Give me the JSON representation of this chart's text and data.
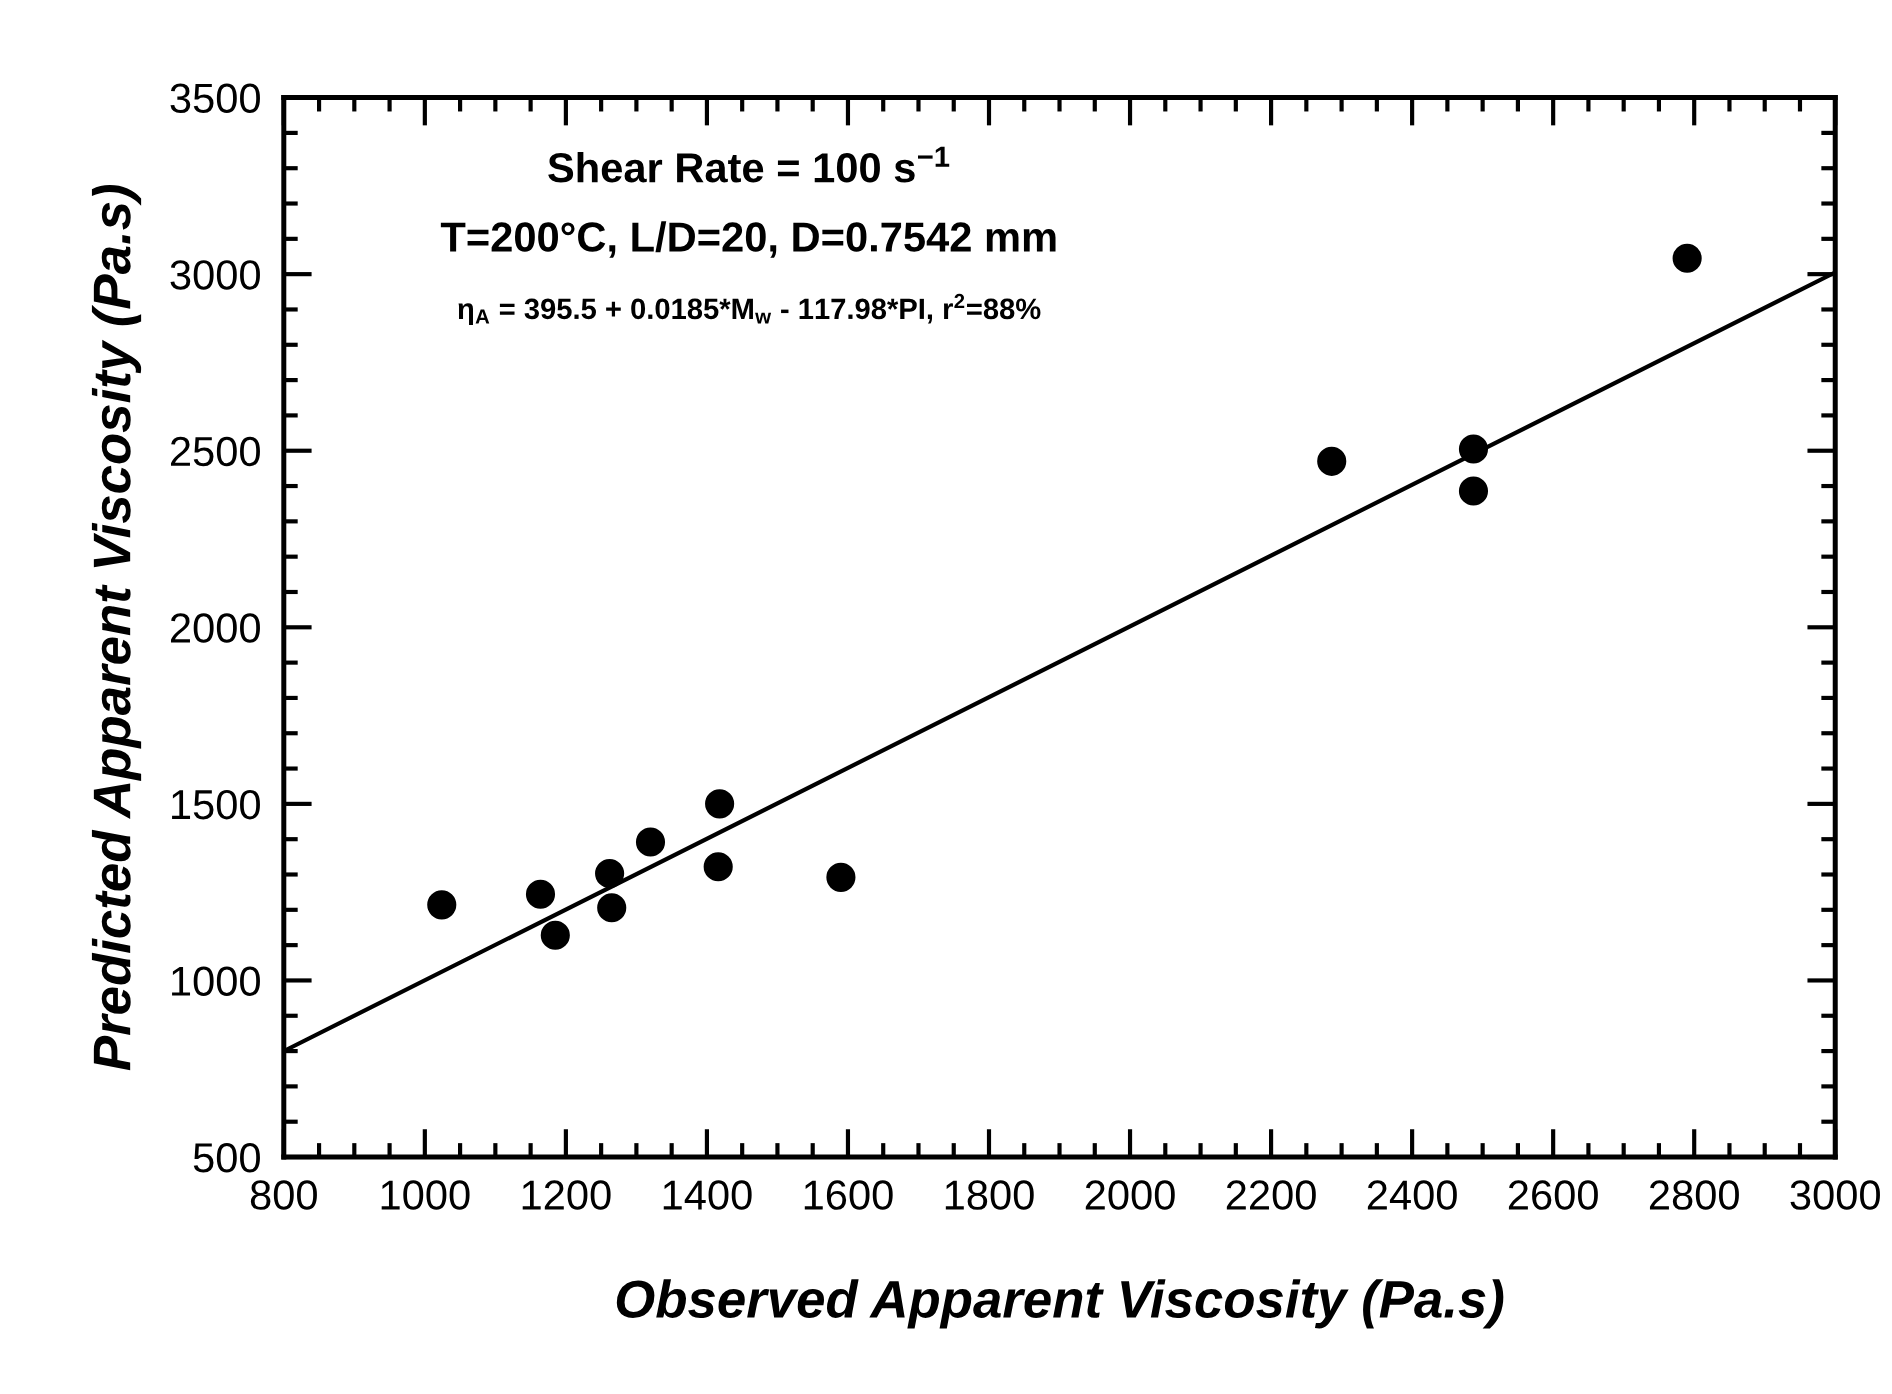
{
  "chart_data": {
    "type": "scatter",
    "xlabel": "Observed Apparent Viscosity (Pa.s)",
    "ylabel": "Predicted Apparent Viscosity (Pa.s)",
    "xlim": [
      800,
      3000
    ],
    "xticks": [
      800,
      1000,
      1200,
      1400,
      1600,
      1800,
      2000,
      2200,
      2400,
      2600,
      2800,
      3000
    ],
    "ylim": [
      500,
      3500
    ],
    "yticks": [
      500,
      1000,
      1500,
      2000,
      2500,
      3000,
      3500
    ],
    "series": [
      {
        "color": "#000000",
        "marker": "circle",
        "x": [
          1024,
          1164,
          1185,
          1262,
          1265,
          1320,
          1418,
          1416,
          1590,
          2286,
          2487,
          2487,
          2790
        ],
        "values": [
          1214,
          1244,
          1128,
          1303,
          1206,
          1392,
          1500,
          1322,
          1292,
          2470,
          2505,
          2386,
          3045
        ]
      },
      {
        "type": "line",
        "color": "#000000",
        "marker": "none",
        "line_style": "solid",
        "x": [
          800,
          3000
        ],
        "values": [
          800,
          3005
        ]
      }
    ],
    "annotations": [
      "Shear Rate = 100 s$^{−1}$",
      "T=200°C, L/D=20, D=0.7542 mm",
      "η$_{A}$ = 395.5 + 0.0185*M$_{w}$ - 117.98*PI, r$^{2}$=88%"
    ]
  }
}
